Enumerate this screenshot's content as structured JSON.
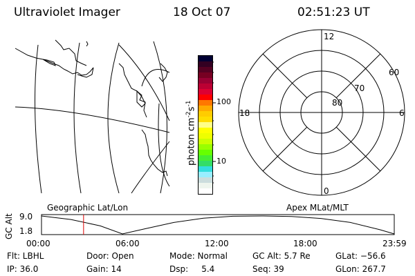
{
  "header": {
    "instrument": "Ultraviolet Imager",
    "date": "18 Oct 07",
    "time": "02:51:23 UT"
  },
  "colorbar": {
    "label": "photon cm",
    "label_sup1": "-2",
    "label_s": "s",
    "label_sup2": "-1",
    "ticks": [
      "100",
      "10"
    ],
    "colors": [
      "#000033",
      "#330022",
      "#550022",
      "#770022",
      "#990033",
      "#bb0033",
      "#dd0033",
      "#ff0000",
      "#ff7700",
      "#ffaa00",
      "#ffcc00",
      "#ffdd00",
      "#ffff88",
      "#ffff00",
      "#eeff00",
      "#ccff00",
      "#99ff00",
      "#66ff00",
      "#44ee33",
      "#33dd66",
      "#33dddd",
      "#99eeff",
      "#ccdddd",
      "#eef5ee",
      "#ffffff"
    ]
  },
  "polar": {
    "mlt_labels": {
      "top": "12",
      "left": "18",
      "right": "6",
      "bottom": "0"
    },
    "lat_labels": [
      "60",
      "70",
      "80"
    ]
  },
  "chart_data": {
    "type": "line",
    "ylabel": "GC Alt",
    "yticks": [
      "9.0",
      "1.8"
    ],
    "ylim": [
      1.8,
      9.0
    ],
    "xticks": [
      "00:00",
      "06:00",
      "12:00",
      "18:00",
      "23:59"
    ],
    "xlim_hours": [
      0,
      23.98
    ],
    "x_hours": [
      0,
      2,
      4,
      5.5,
      7,
      9,
      11,
      13,
      15,
      17,
      19,
      21,
      23,
      23.98
    ],
    "values": [
      9.0,
      7.6,
      5.0,
      1.8,
      3.8,
      6.4,
      8.1,
      8.9,
      9.0,
      8.8,
      8.0,
      6.4,
      3.5,
      1.8
    ],
    "marker_hour": 2.86,
    "marker_color": "#dd0000",
    "left_caption": "Geographic Lat/Lon",
    "right_caption": "Apex MLat/MLT"
  },
  "info": [
    [
      "Flt: LBHL",
      "IP: 36.0"
    ],
    [
      "Door: Open",
      "Gain: 14"
    ],
    [
      "Mode: Normal",
      "Dsp:     5.4"
    ],
    [
      "GC Alt: 5.7 Re",
      "Seq: 39"
    ],
    [
      "GLat: −56.6",
      "GLon: 267.7"
    ]
  ]
}
